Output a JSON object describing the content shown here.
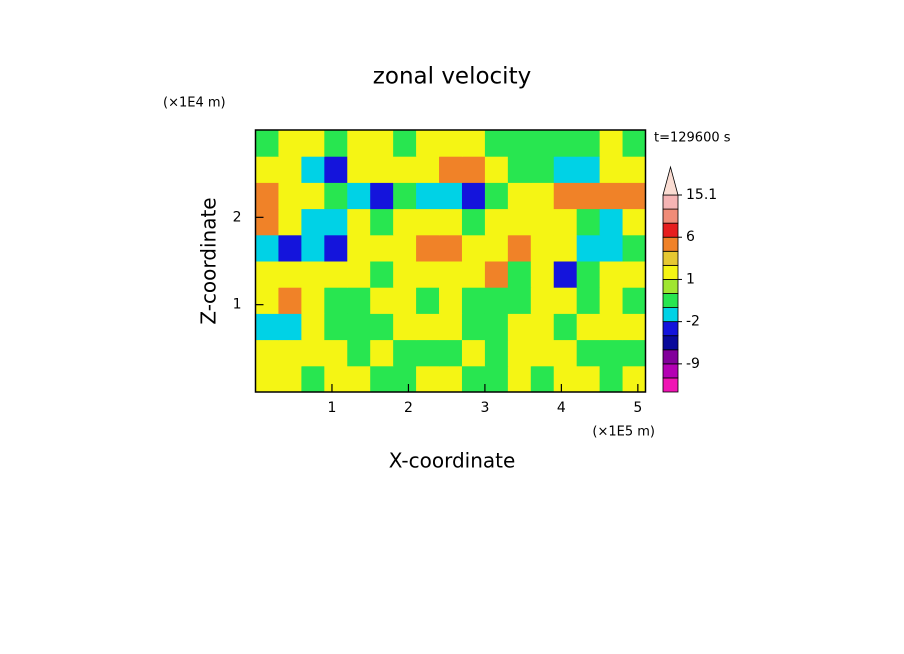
{
  "chart_data": {
    "type": "contour",
    "title": "zonal velocity",
    "x_label": "X-coordinate",
    "y_label": "Z-coordinate",
    "x_unit": "(×1E5 m)",
    "y_unit": "(×1E4 m)",
    "annotation": "t=129600 s",
    "xlim": [
      0,
      5.1
    ],
    "ylim": [
      0,
      3
    ],
    "xticks": [
      1,
      2,
      3,
      4,
      5
    ],
    "yticks": [
      1,
      2
    ],
    "x_edges": [
      0,
      0.3,
      0.6,
      0.9,
      1.2,
      1.5,
      1.8,
      2.1,
      2.4,
      2.7,
      3.0,
      3.3,
      3.6,
      3.9,
      4.2,
      4.5,
      4.8,
      5.1
    ],
    "y_edges": [
      0,
      0.3,
      0.6,
      0.9,
      1.2,
      1.5,
      1.8,
      2.1,
      2.4,
      2.7,
      3.0
    ],
    "z": [
      [
        1.5,
        1.5,
        -0.5,
        1.5,
        1.5,
        -0.5,
        -0.5,
        1.5,
        1.5,
        -0.5,
        -0.5,
        1.5,
        -0.5,
        1.5,
        1.5,
        -0.5,
        1.5
      ],
      [
        1.5,
        1.5,
        1.5,
        1.5,
        -0.5,
        1.5,
        -0.5,
        -0.5,
        -0.5,
        1.5,
        -0.5,
        1.5,
        1.5,
        1.5,
        -0.5,
        -0.5,
        -0.5
      ],
      [
        -1.5,
        -1.5,
        1.5,
        -0.5,
        -0.5,
        -0.5,
        1.5,
        1.5,
        1.5,
        -0.5,
        -0.5,
        1.5,
        1.5,
        -0.5,
        1.5,
        1.5,
        1.5
      ],
      [
        1.5,
        4,
        1.5,
        -0.5,
        -0.5,
        1.5,
        1.5,
        -0.5,
        1.5,
        -0.5,
        -0.5,
        -0.5,
        1.5,
        1.5,
        -0.5,
        1.5,
        -0.5
      ],
      [
        1.5,
        1.5,
        1.5,
        1.5,
        1.5,
        -0.5,
        1.5,
        1.5,
        1.5,
        1.5,
        4,
        -0.5,
        1.5,
        -3,
        -0.5,
        1.5,
        1.5
      ],
      [
        -1.5,
        -3,
        -1.5,
        -3,
        1.5,
        1.5,
        1.5,
        4,
        4,
        1.5,
        1.5,
        4,
        1.5,
        1.5,
        -1.5,
        -1.5,
        -0.5
      ],
      [
        4,
        1.5,
        -1.5,
        -1.5,
        1.5,
        -0.5,
        1.5,
        1.5,
        1.5,
        -0.5,
        1.5,
        1.5,
        1.5,
        1.5,
        -0.5,
        -1.5,
        1.5
      ],
      [
        4,
        1.5,
        1.5,
        -0.5,
        -1.5,
        -3,
        -0.5,
        -1.5,
        -1.5,
        -3,
        -0.5,
        1.5,
        1.5,
        4,
        4,
        4,
        4
      ],
      [
        1.5,
        1.5,
        -1.5,
        -3,
        1.5,
        1.5,
        1.5,
        1.5,
        4,
        4,
        1.5,
        -0.5,
        -0.5,
        -1.5,
        -1.5,
        1.5,
        1.5
      ],
      [
        -0.5,
        1.5,
        1.5,
        -0.5,
        1.5,
        1.5,
        -0.5,
        1.5,
        1.5,
        1.5,
        -0.5,
        -0.5,
        -0.5,
        -0.5,
        -0.5,
        1.5,
        -0.5
      ]
    ],
    "levels": [
      -12,
      -9,
      -6,
      -4,
      -2,
      -1,
      0,
      1,
      2,
      3,
      6,
      9,
      12,
      15.1
    ],
    "colors": [
      "#f014b4",
      "#b400b4",
      "#82009b",
      "#0a0a9b",
      "#1414dc",
      "#00d2e6",
      "#28e650",
      "#a0e632",
      "#f5f514",
      "#e6c832",
      "#f08228",
      "#e61e1e",
      "#f08c78",
      "#f5b4b4",
      "#fadcd2"
    ],
    "colorbar_ticks": [
      -9,
      -2,
      1,
      6,
      15.1
    ]
  }
}
